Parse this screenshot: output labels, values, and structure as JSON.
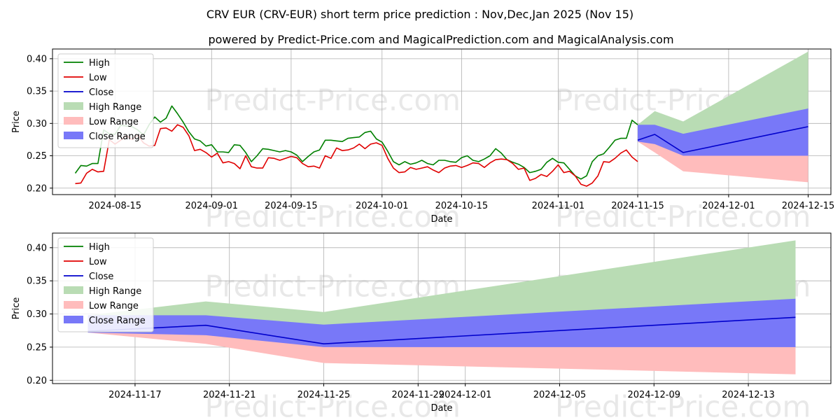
{
  "title_line1": "CRV EUR (CRV-EUR) short term price prediction : Nov,Dec,Jan 2025 (Nov 15)",
  "title_line2": "powered by Predict-Price.com and MagicalPrediction.com and MagicalAnalysis.com",
  "watermark": "Predict-Price.com",
  "colors": {
    "high": "#008000",
    "low": "#e00000",
    "close": "#0000cc",
    "high_range": "#b9dcb4",
    "low_range": "#ffbcbc",
    "close_range": "#7878f8",
    "grid": "#b0b0b0"
  },
  "chart_data": [
    {
      "type": "line",
      "name": "history-and-forecast",
      "xlabel": "Date",
      "ylabel": "Price",
      "x_start_date": "2024-08-08",
      "xlim": [
        -4,
        133
      ],
      "ylim": [
        0.19,
        0.415
      ],
      "yticks": [
        0.2,
        0.25,
        0.3,
        0.35,
        0.4
      ],
      "ytick_labels": [
        "0.20",
        "0.25",
        "0.30",
        "0.35",
        "0.40"
      ],
      "xticks": [
        7,
        24,
        38,
        54,
        68,
        85,
        99,
        115,
        129
      ],
      "xtick_labels": [
        "2024-08-15",
        "2024-09-01",
        "2024-09-15",
        "2024-10-01",
        "2024-10-15",
        "2024-11-01",
        "2024-11-15",
        "2024-12-01",
        "2024-12-15"
      ],
      "legend": [
        "High",
        "Low",
        "Close",
        "High Range",
        "Low Range",
        "Close Range"
      ],
      "legend_position": "upper-left",
      "series": [
        {
          "name": "High",
          "x": [
            0,
            1,
            2,
            3,
            4,
            5,
            6,
            7,
            8,
            9,
            10,
            11,
            12,
            13,
            14,
            15,
            16,
            17,
            18,
            19,
            20,
            21,
            22,
            23,
            24,
            25,
            26,
            27,
            28,
            29,
            30,
            31,
            32,
            33,
            34,
            35,
            36,
            37,
            38,
            39,
            40,
            41,
            42,
            43,
            44,
            45,
            46,
            47,
            48,
            49,
            50,
            51,
            52,
            53,
            54,
            55,
            56,
            57,
            58,
            59,
            60,
            61,
            62,
            63,
            64,
            65,
            66,
            67,
            68,
            69,
            70,
            71,
            72,
            73,
            74,
            75,
            76,
            77,
            78,
            79,
            80,
            81,
            82,
            83,
            84,
            85,
            86,
            87,
            88,
            89,
            90,
            91,
            92,
            93,
            94,
            95,
            96,
            97,
            98,
            99
          ],
          "values": [
            0.223,
            0.235,
            0.234,
            0.238,
            0.238,
            0.29,
            0.284,
            0.283,
            0.297,
            0.296,
            0.295,
            0.29,
            0.282,
            0.298,
            0.31,
            0.302,
            0.308,
            0.327,
            0.315,
            0.302,
            0.287,
            0.276,
            0.273,
            0.265,
            0.267,
            0.256,
            0.256,
            0.255,
            0.267,
            0.266,
            0.255,
            0.241,
            0.25,
            0.261,
            0.26,
            0.258,
            0.256,
            0.258,
            0.256,
            0.251,
            0.241,
            0.249,
            0.256,
            0.259,
            0.274,
            0.274,
            0.273,
            0.272,
            0.277,
            0.278,
            0.279,
            0.286,
            0.288,
            0.276,
            0.271,
            0.257,
            0.241,
            0.236,
            0.241,
            0.237,
            0.239,
            0.243,
            0.238,
            0.236,
            0.243,
            0.243,
            0.241,
            0.24,
            0.247,
            0.25,
            0.243,
            0.241,
            0.245,
            0.25,
            0.261,
            0.254,
            0.244,
            0.24,
            0.237,
            0.232,
            0.224,
            0.226,
            0.229,
            0.24,
            0.246,
            0.24,
            0.239,
            0.229,
            0.219,
            0.214,
            0.219,
            0.241,
            0.25,
            0.253,
            0.263,
            0.274,
            0.277,
            0.277,
            0.305,
            0.298
          ]
        },
        {
          "name": "Low",
          "x": [
            0,
            1,
            2,
            3,
            4,
            5,
            6,
            7,
            8,
            9,
            10,
            11,
            12,
            13,
            14,
            15,
            16,
            17,
            18,
            19,
            20,
            21,
            22,
            23,
            24,
            25,
            26,
            27,
            28,
            29,
            30,
            31,
            32,
            33,
            34,
            35,
            36,
            37,
            38,
            39,
            40,
            41,
            42,
            43,
            44,
            45,
            46,
            47,
            48,
            49,
            50,
            51,
            52,
            53,
            54,
            55,
            56,
            57,
            58,
            59,
            60,
            61,
            62,
            63,
            64,
            65,
            66,
            67,
            68,
            69,
            70,
            71,
            72,
            73,
            74,
            75,
            76,
            77,
            78,
            79,
            80,
            81,
            82,
            83,
            84,
            85,
            86,
            87,
            88,
            89,
            90,
            91,
            92,
            93,
            94,
            95,
            96,
            97,
            98,
            99
          ],
          "values": [
            0.207,
            0.208,
            0.223,
            0.229,
            0.225,
            0.226,
            0.275,
            0.268,
            0.274,
            0.281,
            0.275,
            0.282,
            0.27,
            0.265,
            0.266,
            0.292,
            0.293,
            0.288,
            0.298,
            0.294,
            0.281,
            0.258,
            0.26,
            0.255,
            0.248,
            0.254,
            0.239,
            0.241,
            0.238,
            0.23,
            0.25,
            0.233,
            0.231,
            0.231,
            0.247,
            0.246,
            0.243,
            0.246,
            0.249,
            0.247,
            0.238,
            0.233,
            0.234,
            0.231,
            0.25,
            0.246,
            0.262,
            0.258,
            0.259,
            0.262,
            0.268,
            0.261,
            0.268,
            0.27,
            0.266,
            0.246,
            0.231,
            0.224,
            0.225,
            0.232,
            0.229,
            0.231,
            0.233,
            0.228,
            0.224,
            0.231,
            0.234,
            0.235,
            0.232,
            0.235,
            0.239,
            0.238,
            0.232,
            0.239,
            0.244,
            0.245,
            0.244,
            0.238,
            0.229,
            0.231,
            0.212,
            0.215,
            0.221,
            0.218,
            0.226,
            0.236,
            0.224,
            0.226,
            0.219,
            0.206,
            0.203,
            0.208,
            0.219,
            0.241,
            0.24,
            0.246,
            0.254,
            0.259,
            0.248,
            0.241
          ]
        },
        {
          "name": "Close",
          "x": [
            99,
            102,
            107,
            129
          ],
          "values": [
            0.274,
            0.283,
            0.255,
            0.295
          ]
        }
      ],
      "ranges": [
        {
          "name": "High Range",
          "x": [
            99,
            102,
            107,
            129
          ],
          "upper": [
            0.298,
            0.319,
            0.303,
            0.411
          ],
          "lower": [
            0.274,
            0.283,
            0.255,
            0.295
          ]
        },
        {
          "name": "Low Range",
          "x": [
            99,
            102,
            107,
            129
          ],
          "upper": [
            0.274,
            0.283,
            0.255,
            0.25
          ],
          "lower": [
            0.272,
            0.255,
            0.226,
            0.209
          ]
        },
        {
          "name": "Close Range",
          "x": [
            99,
            102,
            107,
            129
          ],
          "upper": [
            0.298,
            0.298,
            0.284,
            0.323
          ],
          "lower": [
            0.272,
            0.268,
            0.25,
            0.25
          ]
        }
      ]
    },
    {
      "type": "line",
      "name": "forecast-zoom",
      "xlabel": "Date",
      "ylabel": "Price",
      "x_start_date": "2024-11-15",
      "xlim": [
        -1.5,
        31.5
      ],
      "ylim": [
        0.195,
        0.422
      ],
      "yticks": [
        0.2,
        0.25,
        0.3,
        0.35,
        0.4
      ],
      "ytick_labels": [
        "0.20",
        "0.25",
        "0.30",
        "0.35",
        "0.40"
      ],
      "xticks": [
        2,
        6,
        10,
        14,
        16,
        20,
        24,
        28
      ],
      "xtick_labels": [
        "2024-11-17",
        "2024-11-21",
        "2024-11-25",
        "2024-11-29",
        "2024-12-01",
        "2024-12-05",
        "2024-12-09",
        "2024-12-13"
      ],
      "legend": [
        "High",
        "Low",
        "Close",
        "High Range",
        "Low Range",
        "Close Range"
      ],
      "legend_position": "upper-left",
      "series": [
        {
          "name": "High",
          "x": [],
          "values": []
        },
        {
          "name": "Low",
          "x": [],
          "values": []
        },
        {
          "name": "Close",
          "x": [
            0,
            5,
            10,
            30
          ],
          "values": [
            0.274,
            0.283,
            0.255,
            0.295
          ]
        }
      ],
      "ranges": [
        {
          "name": "High Range",
          "x": [
            0,
            5,
            10,
            30
          ],
          "upper": [
            0.298,
            0.319,
            0.303,
            0.411
          ],
          "lower": [
            0.274,
            0.283,
            0.255,
            0.295
          ]
        },
        {
          "name": "Low Range",
          "x": [
            0,
            5,
            10,
            30
          ],
          "upper": [
            0.274,
            0.283,
            0.255,
            0.25
          ],
          "lower": [
            0.272,
            0.255,
            0.226,
            0.209
          ]
        },
        {
          "name": "Close Range",
          "x": [
            0,
            5,
            10,
            30
          ],
          "upper": [
            0.298,
            0.298,
            0.284,
            0.323
          ],
          "lower": [
            0.272,
            0.268,
            0.25,
            0.25
          ]
        }
      ]
    }
  ]
}
